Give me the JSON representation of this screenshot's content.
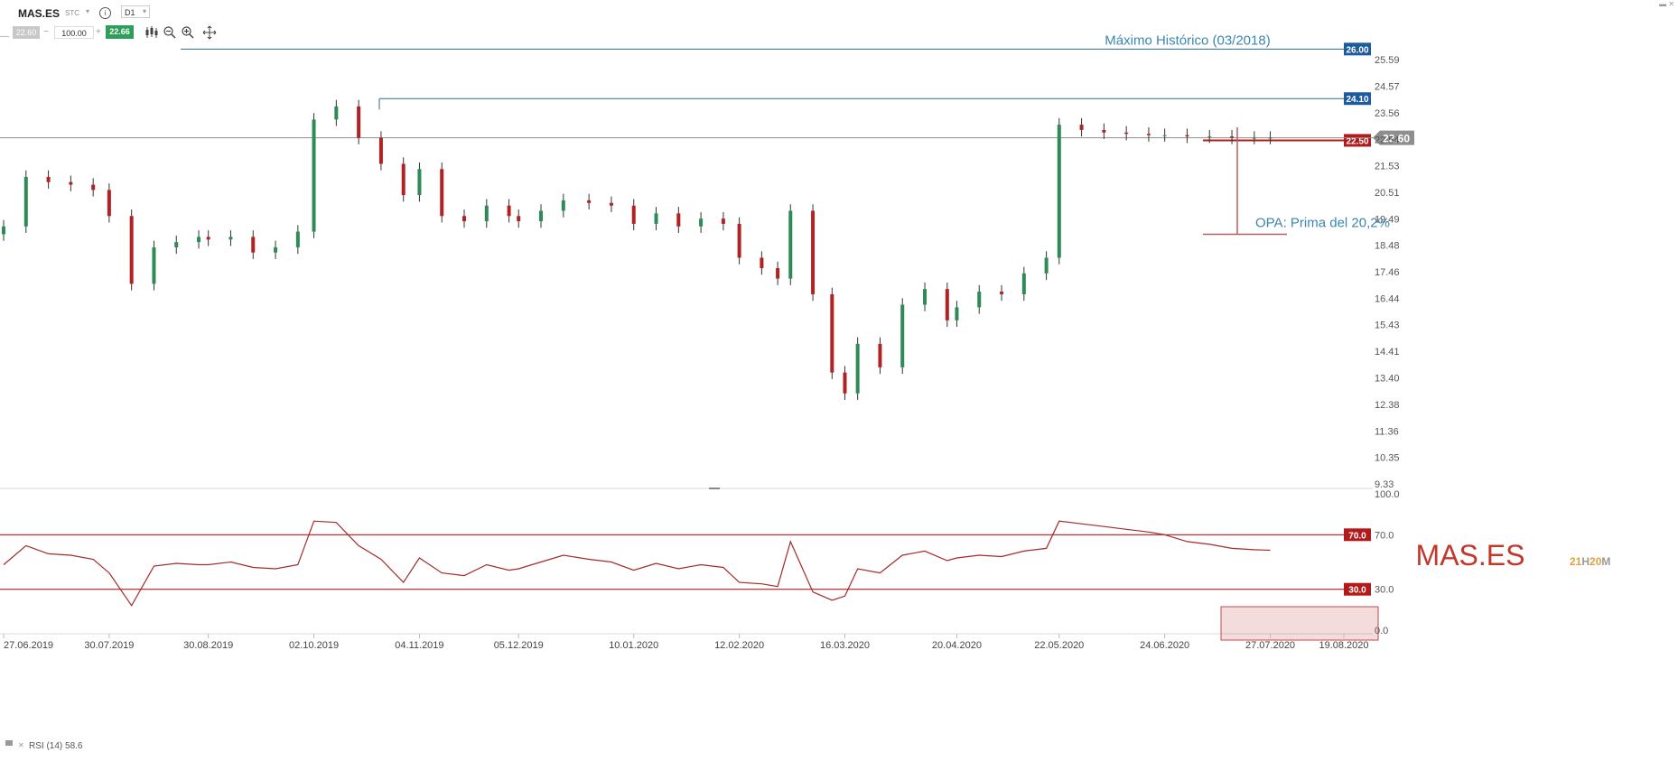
{
  "toolbar": {
    "symbol": "MAS.ES",
    "instrument_type": "STC",
    "timeframe": "D1",
    "minus_sign": "—",
    "bid_price": "22.60",
    "decrement": "−",
    "quantity": "100.00",
    "increment": "+",
    "ask_price": "22.66",
    "info_glyph": "i",
    "caret_glyph": "▾",
    "tools": [
      "candle-type-icon",
      "zoom-out-icon",
      "zoom-in-icon",
      "crosshair-icon"
    ]
  },
  "watermark": {
    "symbol": "MAS.ES",
    "countdown_h": "21",
    "countdown_h_unit": "H",
    "countdown_m": "20",
    "countdown_m_unit": "M"
  },
  "annotations": [
    {
      "kind": "hline",
      "price": 26.0,
      "label": "Máximo Histórico (03/2018)",
      "badge": "26.00",
      "badge_color": "#1e5b9c",
      "line_color": "#2b6a8a"
    },
    {
      "kind": "hline",
      "price": 24.1,
      "label": "",
      "badge": "24.10",
      "badge_color": "#1e5b9c",
      "line_color": "#2b6a8a"
    },
    {
      "kind": "hline",
      "price": 22.5,
      "label": "",
      "badge": "22.50",
      "badge_color": "#b31b1b",
      "line_color": "#b31b1b"
    },
    {
      "kind": "current_price",
      "price": 22.6,
      "badge": "22.60",
      "badge_color": "#8e8e8e"
    },
    {
      "kind": "premium",
      "from_price": 18.9,
      "to_price": 23.0,
      "label": "OPA: Prima del 20,2%",
      "line_color": "#b06060"
    }
  ],
  "chart_data": [
    {
      "type": "candlestick",
      "title": "",
      "xlabel": "",
      "ylabel": "",
      "ylim": [
        9.33,
        26.6
      ],
      "y_ticks": [
        "25.59",
        "24.57",
        "23.56",
        "22.54",
        "21.53",
        "20.51",
        "19.49",
        "18.48",
        "17.46",
        "16.44",
        "15.43",
        "14.41",
        "13.40",
        "12.38",
        "11.36",
        "10.35",
        "9.33"
      ],
      "x_ticks": [
        "27.06.2019",
        "30.07.2019",
        "30.08.2019",
        "02.10.2019",
        "04.11.2019",
        "05.12.2019",
        "10.01.2020",
        "12.02.2020",
        "16.03.2020",
        "20.04.2020",
        "22.05.2020",
        "24.06.2020",
        "27.07.2020",
        "19.08.2020"
      ],
      "x": [
        "2019-06-27",
        "2019-07-04",
        "2019-07-11",
        "2019-07-18",
        "2019-07-25",
        "2019-07-30",
        "2019-08-06",
        "2019-08-13",
        "2019-08-20",
        "2019-08-27",
        "2019-08-30",
        "2019-09-06",
        "2019-09-13",
        "2019-09-20",
        "2019-09-27",
        "2019-10-02",
        "2019-10-09",
        "2019-10-16",
        "2019-10-23",
        "2019-10-30",
        "2019-11-04",
        "2019-11-11",
        "2019-11-18",
        "2019-11-25",
        "2019-12-02",
        "2019-12-05",
        "2019-12-12",
        "2019-12-19",
        "2019-12-27",
        "2020-01-03",
        "2020-01-10",
        "2020-01-17",
        "2020-01-24",
        "2020-01-31",
        "2020-02-07",
        "2020-02-12",
        "2020-02-19",
        "2020-02-24",
        "2020-02-28",
        "2020-03-06",
        "2020-03-12",
        "2020-03-16",
        "2020-03-20",
        "2020-03-27",
        "2020-04-03",
        "2020-04-10",
        "2020-04-17",
        "2020-04-20",
        "2020-04-27",
        "2020-05-04",
        "2020-05-11",
        "2020-05-18",
        "2020-05-22",
        "2020-05-29",
        "2020-06-05",
        "2020-06-12",
        "2020-06-19",
        "2020-06-24",
        "2020-07-01",
        "2020-07-08",
        "2020-07-15",
        "2020-07-22",
        "2020-07-27"
      ],
      "close": [
        19.2,
        21.1,
        20.9,
        20.8,
        20.6,
        19.6,
        17.0,
        18.4,
        18.6,
        18.8,
        18.7,
        18.8,
        18.2,
        18.4,
        19.0,
        23.3,
        23.8,
        22.6,
        21.6,
        20.4,
        21.4,
        19.6,
        19.4,
        20.0,
        19.6,
        19.4,
        19.8,
        20.2,
        20.1,
        20.0,
        19.3,
        19.7,
        19.2,
        19.5,
        19.3,
        18.0,
        17.6,
        17.2,
        19.8,
        16.6,
        13.6,
        12.8,
        14.7,
        13.8,
        16.2,
        16.8,
        15.6,
        16.1,
        16.7,
        16.6,
        17.4,
        18.0,
        23.1,
        22.9,
        22.8,
        22.75,
        22.7,
        22.7,
        22.65,
        22.65,
        22.6,
        22.6,
        22.6
      ],
      "rsi": {
        "label": "RSI (14) 58.6",
        "period": 14,
        "last": 58.6,
        "levels": [
          70.0,
          30.0
        ],
        "level_badges": [
          "70.0",
          "30.0"
        ],
        "y_ticks": [
          "100.0",
          "70.0",
          "30.0",
          "0.0"
        ],
        "values": [
          48,
          62,
          56,
          55,
          52,
          42,
          18,
          47,
          49,
          48,
          48,
          50,
          46,
          45,
          48,
          80,
          79,
          62,
          52,
          35,
          53,
          42,
          40,
          48,
          44,
          45,
          50,
          55,
          52,
          50,
          44,
          49,
          45,
          48,
          46,
          35,
          34,
          32,
          65,
          28,
          22,
          25,
          45,
          42,
          55,
          58,
          51,
          53,
          55,
          54,
          58,
          60,
          80,
          78,
          76,
          74,
          72,
          70,
          65,
          63,
          60,
          59,
          58.6
        ]
      }
    }
  ]
}
